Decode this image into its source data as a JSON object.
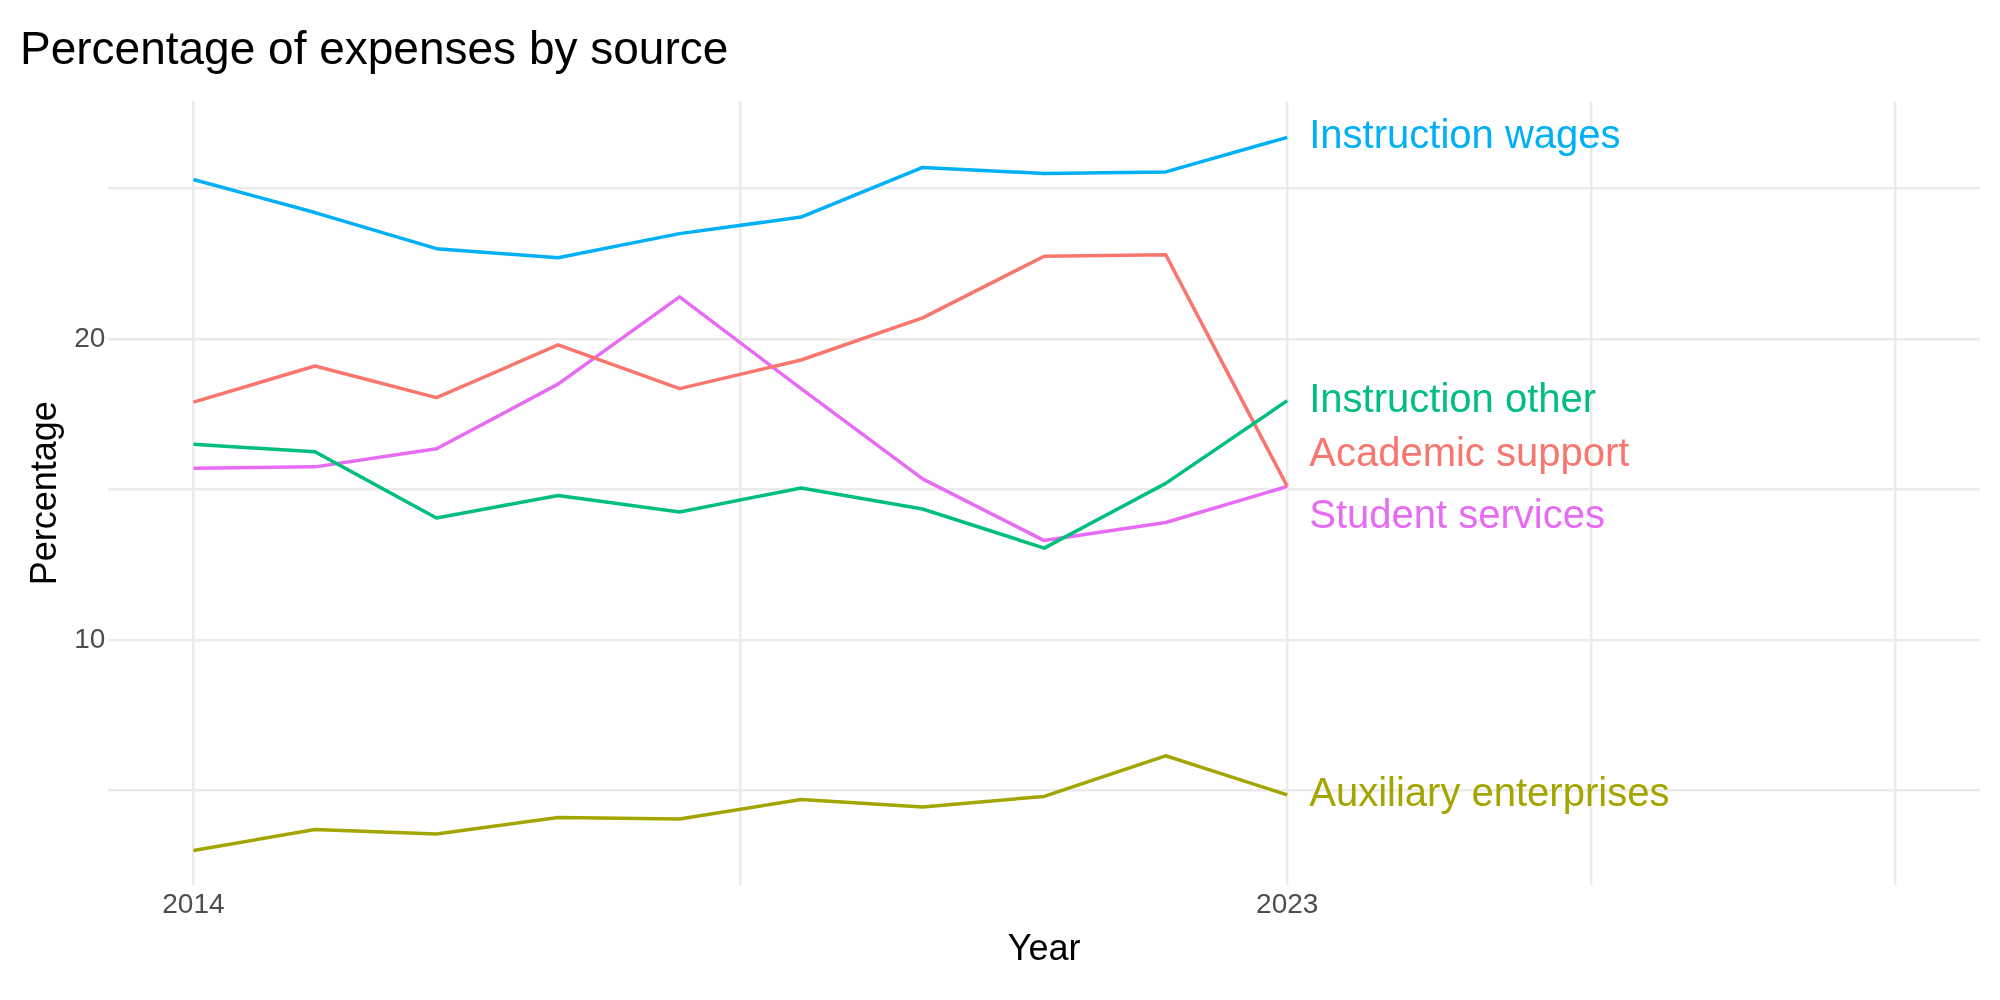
{
  "chart_data": {
    "type": "line",
    "title": "Percentage of expenses by source",
    "xlabel": "Year",
    "ylabel": "Percentage",
    "x": [
      2014,
      2015,
      2016,
      2017,
      2018,
      2019,
      2020,
      2021,
      2022,
      2023
    ],
    "series": [
      {
        "name": "Instruction wages",
        "color": "#00b0f6",
        "values": [
          25.3,
          24.2,
          23.0,
          22.7,
          23.5,
          24.05,
          25.7,
          25.5,
          25.55,
          26.7
        ]
      },
      {
        "name": "Instruction other",
        "color": "#00bf7d",
        "values": [
          16.5,
          16.25,
          14.05,
          14.8,
          14.25,
          15.05,
          14.35,
          13.05,
          15.2,
          17.95
        ]
      },
      {
        "name": "Academic support",
        "color": "#f8766d",
        "values": [
          17.9,
          19.1,
          18.05,
          19.8,
          18.35,
          19.3,
          20.7,
          22.75,
          22.8,
          15.1
        ]
      },
      {
        "name": "Student services",
        "color": "#e76bf3",
        "values": [
          15.7,
          15.75,
          16.35,
          18.5,
          21.4,
          18.35,
          15.35,
          13.3,
          13.9,
          15.1
        ]
      },
      {
        "name": "Auxiliary enterprises",
        "color": "#a3a500",
        "values": [
          3.0,
          3.7,
          3.55,
          4.1,
          4.05,
          4.7,
          4.45,
          4.8,
          6.15,
          4.85
        ]
      }
    ],
    "xlim": [
      2013.3,
      2028.7
    ],
    "xticks": [
      2014,
      {
        "value": 2018.5,
        "label": null
      },
      2023,
      {
        "value": 2025.5,
        "label": null
      },
      {
        "value": 2028,
        "label": null
      }
    ],
    "ylim": [
      1.85,
      27.9
    ],
    "yticks": [
      {
        "value": 5,
        "label": null
      },
      10,
      {
        "value": 15,
        "label": null
      },
      20,
      {
        "value": 25,
        "label": null
      }
    ],
    "grid": true,
    "marker": "none",
    "line_style": "solid"
  }
}
